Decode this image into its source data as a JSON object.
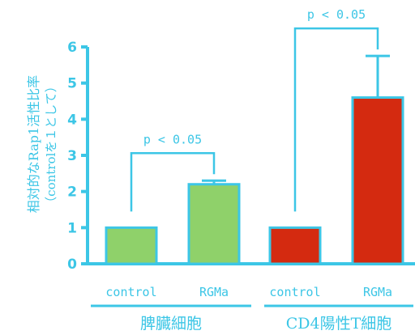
{
  "colors": {
    "axis": "#3cc6e6",
    "text": "#3cc6e6",
    "spleen_bar": "#8fd16a",
    "cd4_bar": "#d42a10",
    "bar_edge": "#3cc6e6"
  },
  "chart_data": {
    "type": "bar",
    "ylabel_line1": "相対的なRap1活性比率",
    "ylabel_line2": "（controlを１として）",
    "ylim": [
      0,
      6
    ],
    "yticks": [
      "0",
      "1",
      "2",
      "3",
      "4",
      "5",
      "6"
    ],
    "groups": [
      {
        "name": "脾臓細胞",
        "categories": [
          "control",
          "RGMa"
        ],
        "values": [
          1.0,
          2.2
        ],
        "errors": [
          0,
          0.1
        ],
        "significance": "p < 0.05"
      },
      {
        "name": "CD4陽性T細胞",
        "categories": [
          "control",
          "RGMa"
        ],
        "values": [
          1.0,
          4.6
        ],
        "errors": [
          0,
          1.15
        ],
        "significance": "p < 0.05"
      }
    ]
  }
}
